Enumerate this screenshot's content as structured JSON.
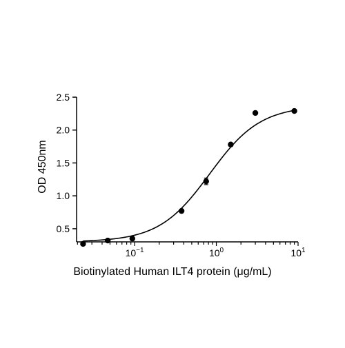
{
  "chart_data": {
    "type": "scatter",
    "title": "",
    "xlabel": "Biotinylated Human ILT4 protein (μg/mL)",
    "ylabel": "OD 450nm",
    "x_scale": "log10",
    "xlim": [
      0.0195,
      10
    ],
    "ylim": [
      0.3,
      2.5
    ],
    "y_ticks": [
      {
        "value": 0.5,
        "label": "0.5"
      },
      {
        "value": 1.0,
        "label": "1.0"
      },
      {
        "value": 1.5,
        "label": "1.5"
      },
      {
        "value": 2.0,
        "label": "2.0"
      },
      {
        "value": 2.5,
        "label": "2.5"
      }
    ],
    "x_major_ticks": [
      {
        "value": 0.1,
        "base": "10",
        "exp": "−1"
      },
      {
        "value": 1,
        "base": "10",
        "exp": "0"
      },
      {
        "value": 10,
        "base": "10",
        "exp": "1"
      }
    ],
    "grid": false,
    "legend": "none",
    "series": [
      {
        "points": [
          {
            "x": 0.0234,
            "y": 0.27
          },
          {
            "x": 0.0469,
            "y": 0.32
          },
          {
            "x": 0.0938,
            "y": 0.35
          },
          {
            "x": 0.375,
            "y": 0.77
          },
          {
            "x": 0.75,
            "y": 1.22,
            "error": 0.05
          },
          {
            "x": 1.5,
            "y": 1.78
          },
          {
            "x": 3.0,
            "y": 2.26
          },
          {
            "x": 9.0,
            "y": 2.29
          }
        ],
        "fit": {
          "model": "4PL",
          "bottom": 0.3,
          "top": 2.37,
          "ec50": 0.83,
          "hill": 1.4
        }
      }
    ],
    "colors": {
      "marker": "#000000",
      "axis": "#000000",
      "curve": "#000000"
    }
  }
}
